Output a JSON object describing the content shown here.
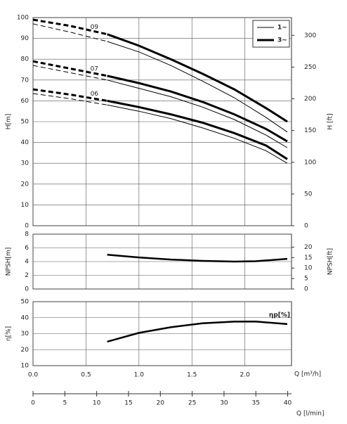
{
  "chart_data": [
    {
      "type": "line",
      "ylabel": "H[m]",
      "y2label": "H [ft]",
      "color": "#000000",
      "ylim": [
        0,
        100
      ],
      "yticks": [
        0,
        10,
        20,
        30,
        40,
        50,
        60,
        70,
        80,
        90,
        100
      ],
      "y2lim": [
        0,
        328
      ],
      "y2ticks": [
        0,
        50,
        100,
        150,
        200,
        250,
        300
      ],
      "styles": {
        "thin": 1,
        "thick": 3
      },
      "legend": [
        {
          "label": "1~",
          "style": "thin"
        },
        {
          "label": "3~",
          "style": "thick"
        }
      ],
      "x": [
        0,
        0.35,
        0.7,
        1.0,
        1.3,
        1.6,
        1.9,
        2.2,
        2.4
      ],
      "series": [
        {
          "label": "09",
          "style": "thick",
          "dashed_values": [
            99,
            96,
            92,
            null,
            null,
            null,
            null,
            null,
            null
          ],
          "values": [
            null,
            null,
            92,
            86.5,
            80,
            73,
            65.5,
            56.5,
            50
          ]
        },
        {
          "style": "thin",
          "dashed_values": [
            97,
            93,
            88.5,
            null,
            null,
            null,
            null,
            null,
            null
          ],
          "values": [
            null,
            null,
            88.5,
            83.5,
            77,
            69.5,
            61.5,
            52,
            45
          ]
        },
        {
          "label": "07",
          "style": "thick",
          "dashed_values": [
            79,
            75.5,
            72,
            null,
            null,
            null,
            null,
            null,
            null
          ],
          "values": [
            null,
            null,
            72,
            68.5,
            64.5,
            59.5,
            53.5,
            46.5,
            40.5
          ]
        },
        {
          "style": "thin",
          "dashed_values": [
            77,
            73.5,
            70,
            null,
            null,
            null,
            null,
            null,
            null
          ],
          "values": [
            null,
            null,
            70,
            66,
            62,
            57,
            51,
            43.5,
            37.5
          ]
        },
        {
          "label": "06",
          "style": "thick",
          "dashed_values": [
            65.5,
            63,
            60,
            null,
            null,
            null,
            null,
            null,
            null
          ],
          "values": [
            null,
            null,
            60,
            57,
            53.5,
            49.5,
            44.5,
            38.5,
            32
          ]
        },
        {
          "style": "thin",
          "dashed_values": [
            63.5,
            61,
            58,
            null,
            null,
            null,
            null,
            null,
            null
          ],
          "values": [
            null,
            null,
            58,
            55,
            51.5,
            47,
            42,
            36,
            30
          ]
        }
      ]
    },
    {
      "type": "line",
      "ylabel": "NPSH[m]",
      "y2label": "NPSH[ft]",
      "color": "#000000",
      "ylim": [
        0,
        8
      ],
      "yticks": [
        0,
        2,
        4,
        6,
        8
      ],
      "y2lim": [
        0,
        26.2
      ],
      "y2ticks": [
        0,
        5,
        10,
        15,
        20
      ],
      "styles": {
        "thick": 2.5
      },
      "x": [
        0.7,
        1.0,
        1.3,
        1.6,
        1.9,
        2.1,
        2.4
      ],
      "series": [
        {
          "style": "thick",
          "values": [
            5,
            4.6,
            4.3,
            4.1,
            4.0,
            4.05,
            4.4
          ]
        }
      ]
    },
    {
      "type": "line",
      "ylabel": "η[%]",
      "annotation": "ηp[%]",
      "color": "#000000",
      "ylim": [
        10,
        50
      ],
      "yticks": [
        10,
        20,
        30,
        40,
        50
      ],
      "styles": {
        "thick": 2.5
      },
      "x": [
        0.7,
        1.0,
        1.3,
        1.6,
        1.9,
        2.1,
        2.4
      ],
      "series": [
        {
          "style": "thick",
          "values": [
            25,
            30.5,
            34,
            36.5,
            37.5,
            37.6,
            36
          ]
        }
      ],
      "xlabel": "Q [m³/h]",
      "xlim": [
        0,
        2.44
      ],
      "xticks": [
        {
          "value": 0,
          "label": "0.0"
        },
        0.5,
        {
          "value": 1,
          "label": "1.0"
        },
        1.5,
        {
          "value": 2,
          "label": "2.0"
        }
      ],
      "x2label": "Q [l/min]",
      "x2lim": [
        0,
        40.6
      ],
      "x2ticks": [
        0,
        5,
        10,
        15,
        20,
        25,
        30,
        35,
        40
      ]
    }
  ]
}
